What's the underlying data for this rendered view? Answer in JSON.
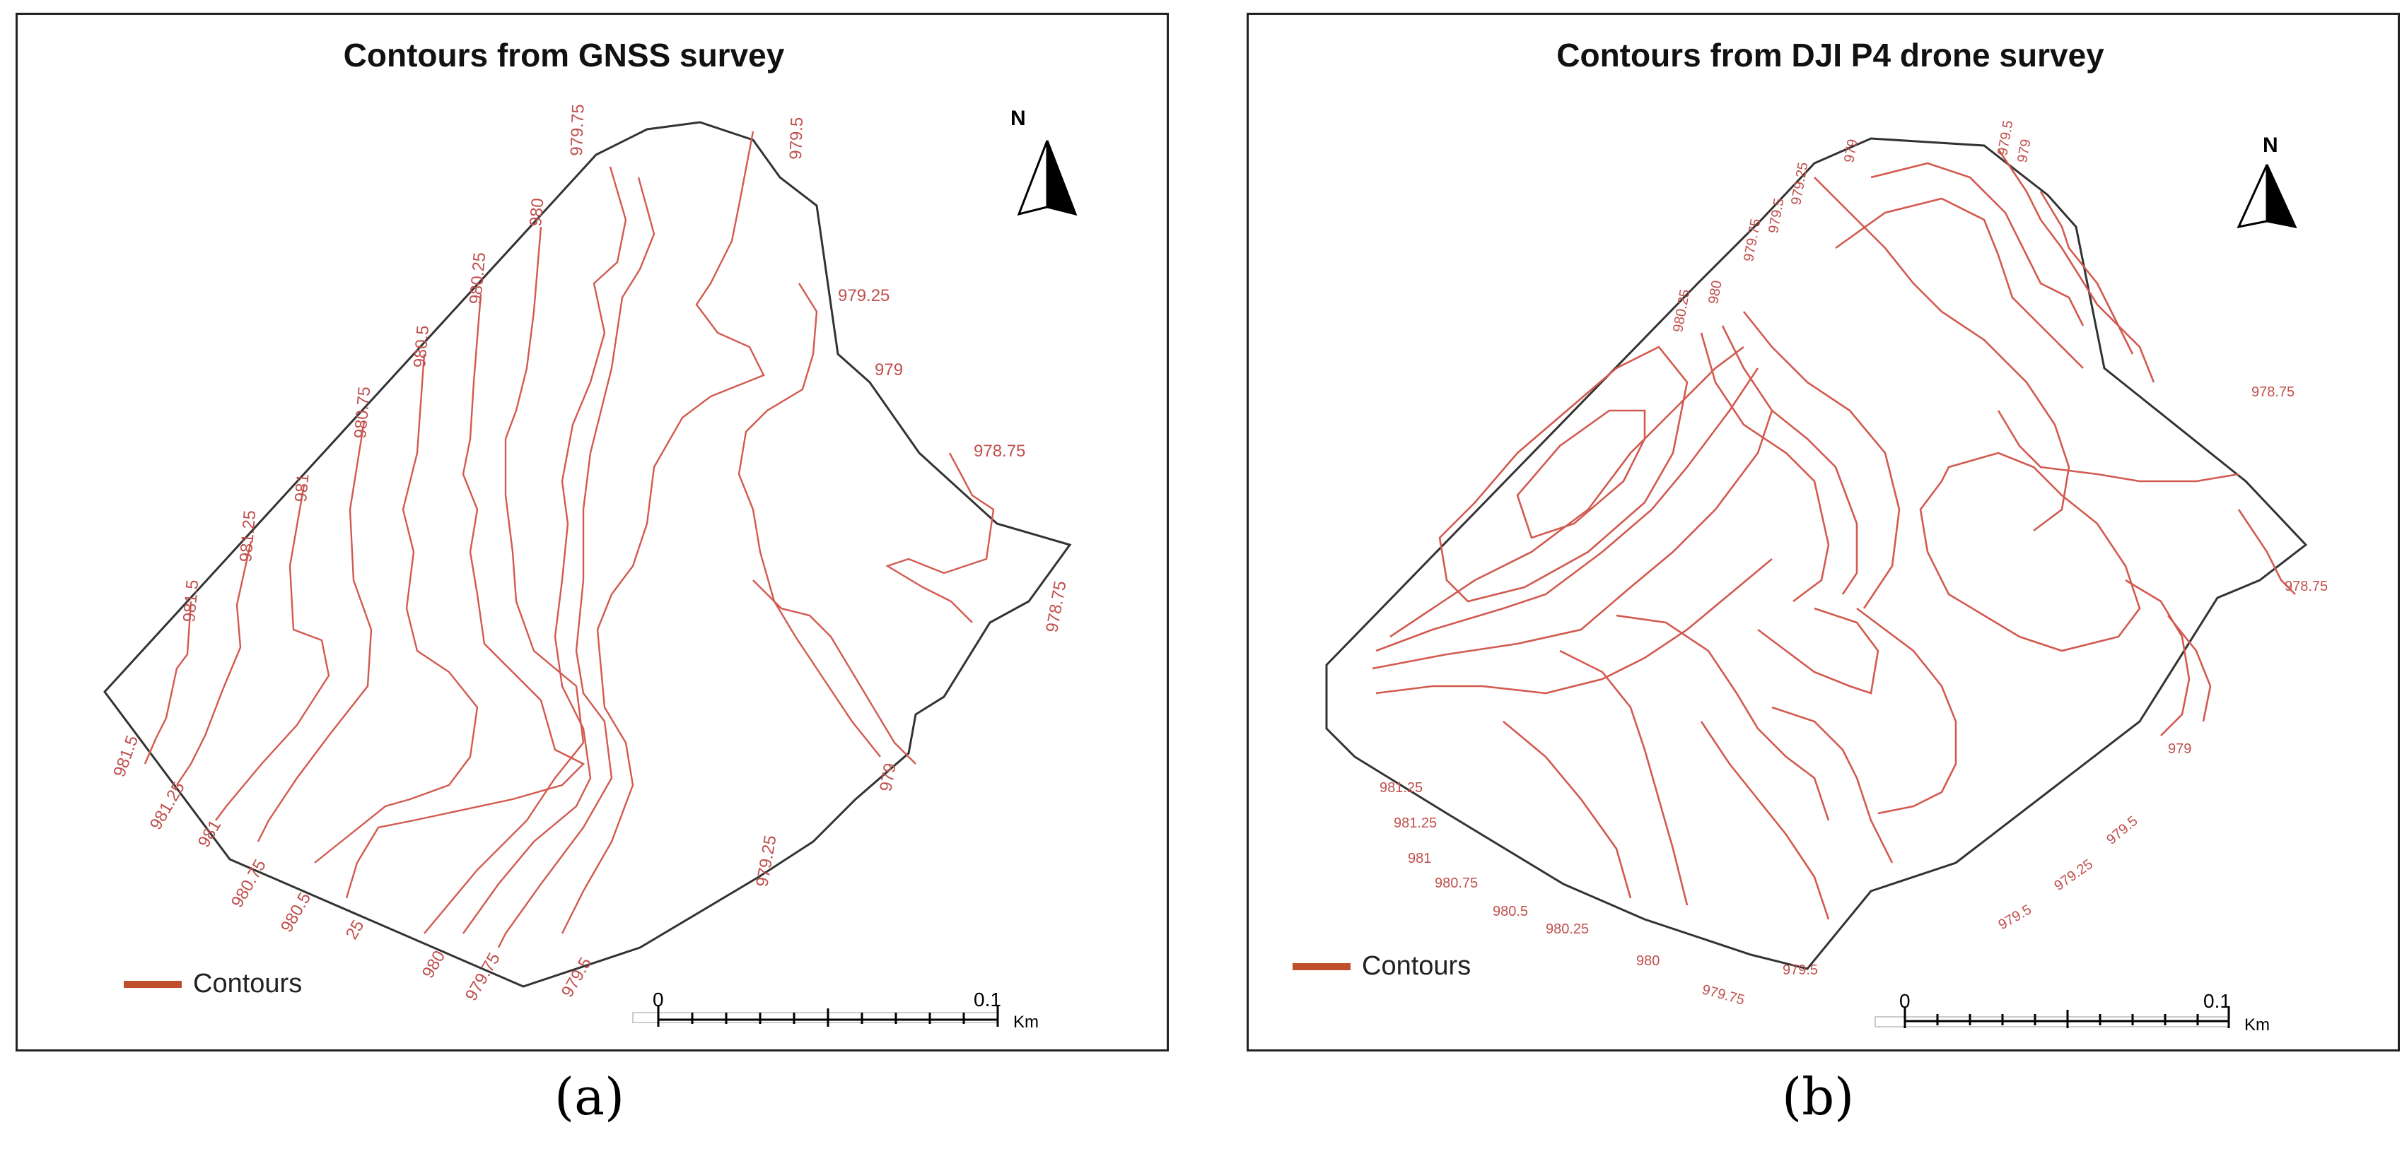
{
  "panels": [
    {
      "title": "Contours from GNSS survey",
      "legend_label": "Contours",
      "north_label": "N",
      "scale_start": "0",
      "scale_end": "0.1",
      "scale_unit": "Km",
      "caption": "(a)",
      "contour_color": "#c0504d",
      "labels": [
        "979.75",
        "979.5",
        "980",
        "980.25",
        "979.25",
        "980.5",
        "979",
        "980.75",
        "978.75",
        "981",
        "981.25",
        "981.5",
        "978.75",
        "981.5",
        "981.25",
        "981",
        "980.75",
        "980.5",
        "25",
        "980",
        "979.75",
        "979.5",
        "979.25",
        "979"
      ]
    },
    {
      "title": "Contours from DJI P4 drone survey",
      "legend_label": "Contours",
      "north_label": "N",
      "scale_start": "0",
      "scale_end": "0.1",
      "scale_unit": "Km",
      "caption": "(b)",
      "contour_color": "#c0504d",
      "labels": [
        "979",
        "979.5",
        "979",
        "979.25",
        "979.5",
        "979.75",
        "980",
        "980.25",
        "978.75",
        "981.25",
        "981.25",
        "981",
        "980.75",
        "980.5",
        "980.25",
        "980",
        "979.75",
        "979.5",
        "979.5",
        "979.25",
        "979.5",
        "979",
        "978.75"
      ]
    }
  ]
}
